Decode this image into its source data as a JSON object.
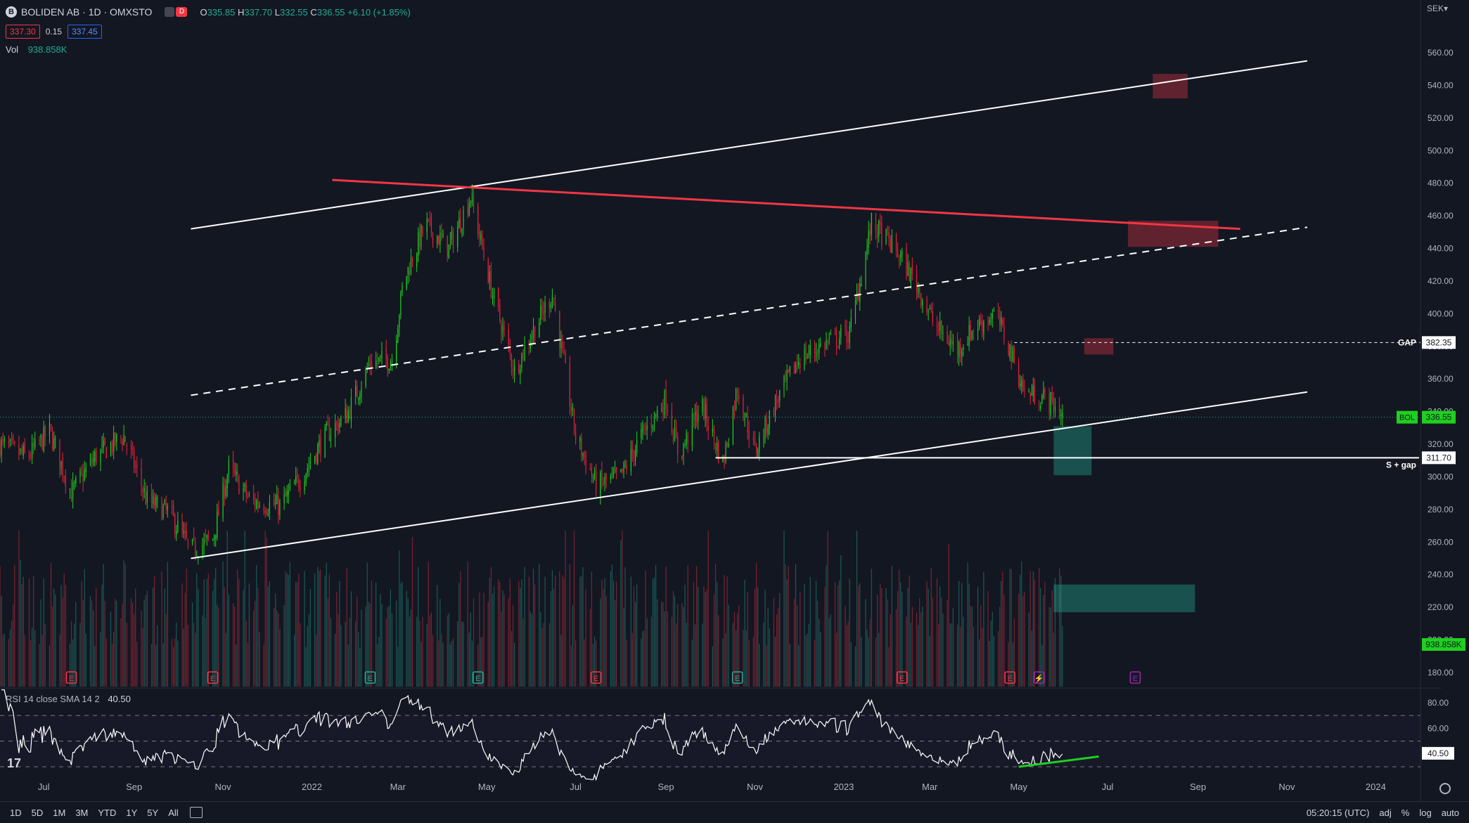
{
  "header": {
    "symbol_badge": "B",
    "title": "BOLIDEN AB · 1D · OMXSTO",
    "toggle_label": "D",
    "ohlc": {
      "o_label": "O",
      "o": "335.85",
      "h_label": "H",
      "h": "337.70",
      "l_label": "L",
      "l": "332.55",
      "c_label": "C",
      "c": "336.55",
      "change": "+6.10 (+1.85%)"
    },
    "bid": "337.30",
    "spread": "0.15",
    "ask": "337.45",
    "vol_label": "Vol",
    "vol_value": "938.858K",
    "currency": "SEK"
  },
  "rsi_legend": {
    "name": "RSI 14 close SMA 14 2",
    "value": "40.50"
  },
  "bottom_bar": {
    "ranges": [
      "1D",
      "5D",
      "1M",
      "3M",
      "YTD",
      "1Y",
      "5Y",
      "All"
    ],
    "time": "05:20:15 (UTC)",
    "adj": "adj",
    "pct": "%",
    "log": "log",
    "auto": "auto"
  },
  "colors": {
    "bg": "#131722",
    "up": "#22ab94",
    "down": "#f23645",
    "bright_up": "#1fd01f",
    "bright_down": "#e8213a",
    "grid": "#1e222d",
    "text": "#d1d4dc"
  },
  "chart_data": {
    "type": "candlestick",
    "price_axis": {
      "min": 180,
      "max": 560,
      "ticks": [
        180,
        200,
        220,
        240,
        260,
        280,
        300,
        320,
        340,
        360,
        380,
        400,
        420,
        440,
        460,
        480,
        500,
        520,
        540,
        560
      ]
    },
    "time_axis": {
      "start": "2021-06-01",
      "end": "2024-01-10",
      "labels": [
        {
          "text": "Jul",
          "date": "2021-07-01"
        },
        {
          "text": "Sep",
          "date": "2021-09-01"
        },
        {
          "text": "Nov",
          "date": "2021-11-01"
        },
        {
          "text": "2022",
          "date": "2022-01-01"
        },
        {
          "text": "Mar",
          "date": "2022-03-01"
        },
        {
          "text": "May",
          "date": "2022-05-01"
        },
        {
          "text": "Jul",
          "date": "2022-07-01"
        },
        {
          "text": "Sep",
          "date": "2022-09-01"
        },
        {
          "text": "Nov",
          "date": "2022-11-01"
        },
        {
          "text": "2023",
          "date": "2023-01-01"
        },
        {
          "text": "Mar",
          "date": "2023-03-01"
        },
        {
          "text": "May",
          "date": "2023-05-01"
        },
        {
          "text": "Jul",
          "date": "2023-07-01"
        },
        {
          "text": "Sep",
          "date": "2023-09-01"
        },
        {
          "text": "Nov",
          "date": "2023-11-01"
        },
        {
          "text": "2024",
          "date": "2024-01-01"
        }
      ]
    },
    "price_path": [
      [
        "2021-06-01",
        320
      ],
      [
        "2021-06-20",
        312
      ],
      [
        "2021-07-05",
        328
      ],
      [
        "2021-07-20",
        290
      ],
      [
        "2021-08-05",
        312
      ],
      [
        "2021-08-25",
        325
      ],
      [
        "2021-09-10",
        285
      ],
      [
        "2021-09-25",
        278
      ],
      [
        "2021-10-10",
        255
      ],
      [
        "2021-10-25",
        262
      ],
      [
        "2021-11-05",
        305
      ],
      [
        "2021-11-20",
        285
      ],
      [
        "2021-12-10",
        282
      ],
      [
        "2021-12-25",
        300
      ],
      [
        "2022-01-10",
        325
      ],
      [
        "2022-01-25",
        338
      ],
      [
        "2022-02-10",
        370
      ],
      [
        "2022-02-25",
        372
      ],
      [
        "2022-03-05",
        420
      ],
      [
        "2022-03-20",
        455
      ],
      [
        "2022-04-05",
        440
      ],
      [
        "2022-04-20",
        472
      ],
      [
        "2022-05-05",
        412
      ],
      [
        "2022-05-20",
        365
      ],
      [
        "2022-06-01",
        388
      ],
      [
        "2022-06-15",
        412
      ],
      [
        "2022-07-01",
        325
      ],
      [
        "2022-07-15",
        295
      ],
      [
        "2022-08-01",
        300
      ],
      [
        "2022-08-15",
        325
      ],
      [
        "2022-09-01",
        348
      ],
      [
        "2022-09-10",
        312
      ],
      [
        "2022-09-25",
        345
      ],
      [
        "2022-10-10",
        308
      ],
      [
        "2022-10-20",
        355
      ],
      [
        "2022-11-01",
        315
      ],
      [
        "2022-11-15",
        345
      ],
      [
        "2022-12-01",
        372
      ],
      [
        "2022-12-20",
        382
      ],
      [
        "2023-01-05",
        388
      ],
      [
        "2023-01-20",
        455
      ],
      [
        "2023-02-05",
        440
      ],
      [
        "2023-02-20",
        418
      ],
      [
        "2023-03-05",
        392
      ],
      [
        "2023-03-20",
        378
      ],
      [
        "2023-04-01",
        392
      ],
      [
        "2023-04-15",
        400
      ],
      [
        "2023-04-25",
        378
      ],
      [
        "2023-05-05",
        352
      ],
      [
        "2023-05-20",
        348
      ],
      [
        "2023-06-02",
        336.55
      ]
    ],
    "volume_axis": {
      "max": 2000000,
      "last": 938858
    },
    "rsi": {
      "ticks": [
        40,
        60,
        80
      ],
      "levels": {
        "upper": 70,
        "middle": 50,
        "lower": 30
      },
      "last": 40.5
    },
    "drawings": {
      "channel_upper": {
        "from": [
          "2021-10-10",
          452
        ],
        "to": [
          "2023-11-15",
          555
        ]
      },
      "channel_mid": {
        "from": [
          "2021-10-10",
          350
        ],
        "to": [
          "2023-11-15",
          453
        ]
      },
      "channel_lower": {
        "from": [
          "2021-10-10",
          250
        ],
        "to": [
          "2023-11-15",
          352
        ]
      },
      "red_resistance": {
        "from": [
          "2022-01-15",
          482
        ],
        "to": [
          "2023-09-30",
          452
        ]
      },
      "support_line": {
        "from": [
          "2022-10-05",
          311.7
        ],
        "to": [
          "2024-01-10",
          311.7
        ],
        "label": "S + gap"
      },
      "gap_line": {
        "from": [
          "2023-04-28",
          382.35
        ],
        "to": [
          "2024-01-10",
          382.35
        ],
        "label": "GAP"
      },
      "zones": [
        {
          "from": [
            "2023-08-01",
            547
          ],
          "to": [
            "2023-08-25",
            532
          ],
          "color": "#f23645"
        },
        {
          "from": [
            "2023-07-15",
            457
          ],
          "to": [
            "2023-09-15",
            441
          ],
          "color": "#f23645"
        },
        {
          "from": [
            "2023-06-15",
            385
          ],
          "to": [
            "2023-07-05",
            375
          ],
          "color": "#f23645"
        },
        {
          "from": [
            "2023-05-25",
            331
          ],
          "to": [
            "2023-06-20",
            301
          ],
          "color": "#22ab94"
        },
        {
          "from": [
            "2023-05-25",
            234
          ],
          "to": [
            "2023-08-30",
            217
          ],
          "color": "#22ab94"
        }
      ],
      "rsi_divergence": {
        "from": [
          "2023-05-01",
          30
        ],
        "to": [
          "2023-06-25",
          38
        ]
      }
    },
    "price_labels": [
      {
        "text": "382.35",
        "value": 382.35,
        "style": "plain"
      },
      {
        "text": "311.70",
        "value": 311.7,
        "style": "plain"
      },
      {
        "text": "336.55",
        "value": 336.55,
        "style": "green",
        "prefix": "BOL"
      }
    ],
    "vol_label": "938.858K",
    "rsi_label": "40.50",
    "events": [
      {
        "date": "2021-07-20",
        "type": "E",
        "color": "#f23645"
      },
      {
        "date": "2021-10-25",
        "type": "E",
        "color": "#f23645"
      },
      {
        "date": "2022-02-10",
        "type": "E",
        "color": "#22ab94"
      },
      {
        "date": "2022-04-25",
        "type": "E",
        "color": "#22ab94"
      },
      {
        "date": "2022-07-15",
        "type": "E",
        "color": "#f23645"
      },
      {
        "date": "2022-10-20",
        "type": "E",
        "color": "#22ab94"
      },
      {
        "date": "2023-02-10",
        "type": "E",
        "color": "#f23645"
      },
      {
        "date": "2023-04-25",
        "type": "E",
        "color": "#f23645"
      },
      {
        "date": "2023-05-15",
        "type": "⚡",
        "color": "#9c27b0"
      },
      {
        "date": "2023-07-20",
        "type": "E",
        "color": "#9c27b0"
      }
    ]
  }
}
